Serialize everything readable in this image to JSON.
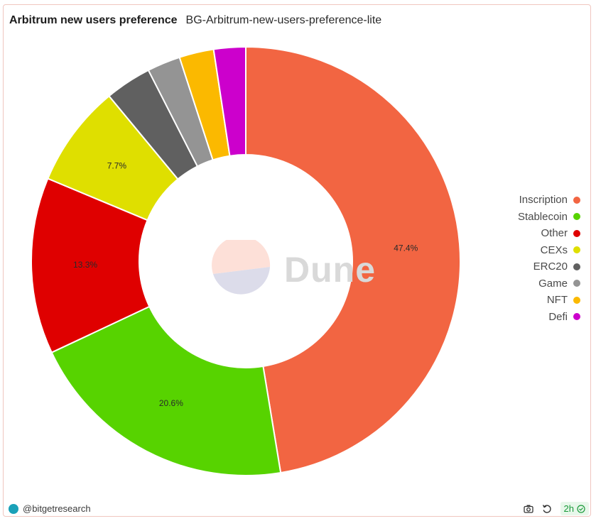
{
  "header": {
    "title": "Arbitrum new users preference",
    "subtitle": "BG-Arbitrum-new-users-preference-lite"
  },
  "watermark": {
    "text": "Dune"
  },
  "footer": {
    "author": "@bitgetresearch",
    "refresh_label": "2h",
    "icons": [
      "camera-icon",
      "refresh-icon",
      "check-circle-icon"
    ]
  },
  "chart_data": {
    "type": "pie",
    "donut": true,
    "legend_position": "right",
    "slices": [
      {
        "label": "Inscription",
        "value": 47.4,
        "color": "#f26542",
        "data_label": "47.4%"
      },
      {
        "label": "Stablecoin",
        "value": 20.6,
        "color": "#57d300",
        "data_label": "20.6%"
      },
      {
        "label": "Other",
        "value": 13.3,
        "color": "#df0000",
        "data_label": "13.3%"
      },
      {
        "label": "CEXs",
        "value": 7.7,
        "color": "#dfdf00",
        "data_label": "7.7%"
      },
      {
        "label": "ERC20",
        "value": 3.5,
        "color": "#606060",
        "data_label": ""
      },
      {
        "label": "Game",
        "value": 2.5,
        "color": "#949494",
        "data_label": ""
      },
      {
        "label": "NFT",
        "value": 2.6,
        "color": "#fbb900",
        "data_label": ""
      },
      {
        "label": "Defi",
        "value": 2.4,
        "color": "#cc00cc",
        "data_label": ""
      }
    ]
  }
}
